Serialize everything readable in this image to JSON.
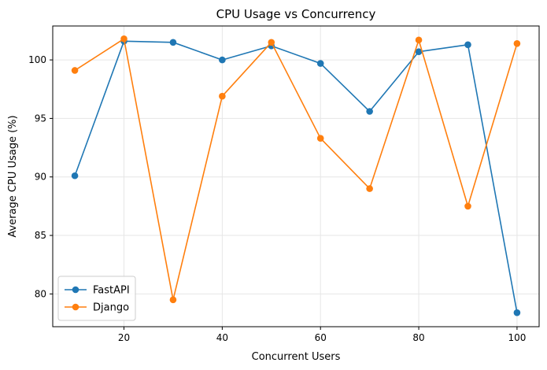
{
  "chart_data": {
    "type": "line",
    "title": "CPU Usage vs Concurrency",
    "xlabel": "Concurrent Users",
    "ylabel": "Average CPU Usage (%)",
    "x": [
      10,
      20,
      30,
      40,
      50,
      60,
      70,
      80,
      90,
      100
    ],
    "xlim": [
      5.5,
      104.5
    ],
    "ylim": [
      77.2,
      102.9
    ],
    "xticks": [
      20,
      40,
      60,
      80,
      100
    ],
    "yticks": [
      80,
      85,
      90,
      95,
      100
    ],
    "grid": true,
    "legend_position": "lower-left",
    "series": [
      {
        "name": "FastAPI",
        "color": "#1f77b4",
        "marker": "circle",
        "values": [
          90.1,
          101.6,
          101.5,
          100.0,
          101.2,
          99.7,
          95.6,
          100.7,
          101.3,
          78.4
        ]
      },
      {
        "name": "Django",
        "color": "#ff7f0e",
        "marker": "circle",
        "values": [
          99.1,
          101.8,
          79.5,
          96.9,
          101.5,
          93.3,
          89.0,
          101.7,
          87.5,
          101.4
        ]
      }
    ]
  }
}
